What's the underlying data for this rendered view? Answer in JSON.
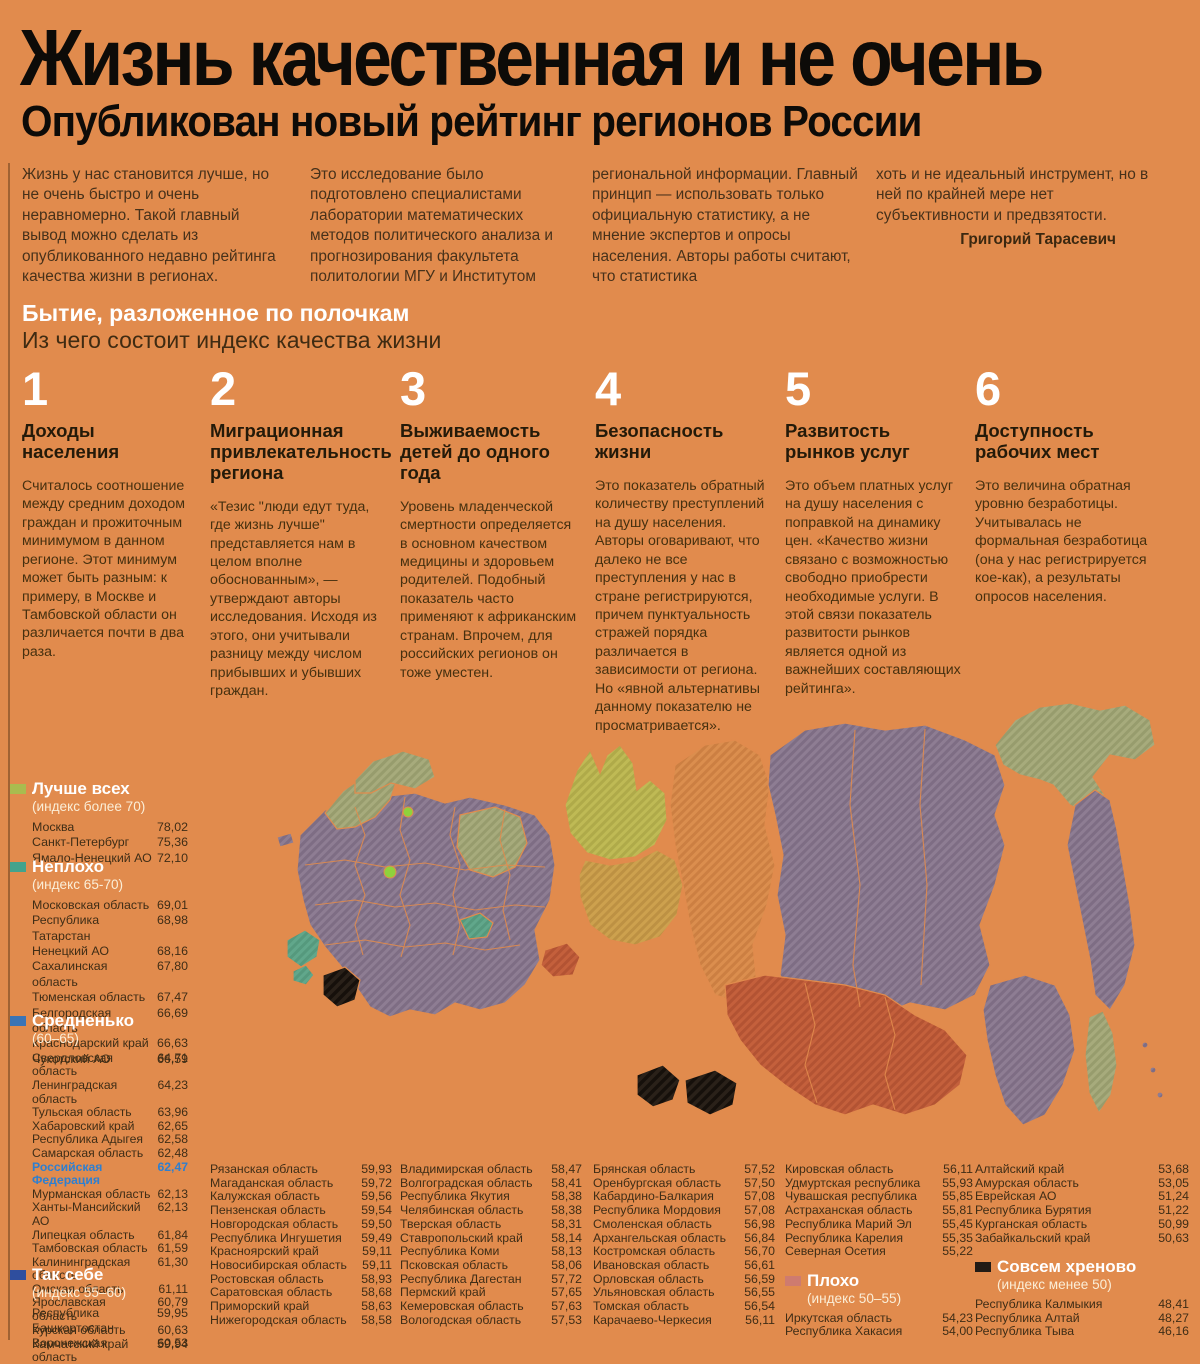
{
  "header": {
    "title": "Жизнь качественная и не очень",
    "subtitle": "Опубликован новый рейтинг регионов России"
  },
  "intro": {
    "col1": "Жизнь у нас становится лучше, но не очень быстро и очень неравномерно. Такой главный вывод можно сделать из опубликованного недавно рейтинга качества жизни в регионах.",
    "col2": "Это исследование было подготовлено специалистами лаборатории математических методов политического анализа и прогнозирования факультета политологии МГУ и Институтом",
    "col3": "региональной информации. Главный принцип — использовать только официальную статистику, а не мнение экспертов и опросы населения. Авторы работы считают, что статистика",
    "col4": "хоть и не идеальный инструмент, но в ней по крайней мере нет субъективности и предвзятости.",
    "author": "Григорий Тарасевич"
  },
  "section": {
    "title": "Бытие, разложенное по полочкам",
    "subtitle": "Из чего состоит индекс качества жизни"
  },
  "factors": [
    {
      "num": "1",
      "title": "Доходы населения",
      "text": "Считалось соотношение между средним доходом граждан и прожиточным минимумом в данном регионе. Этот минимум может быть разным: к примеру, в Москве и Тамбовской области он различается почти в два раза."
    },
    {
      "num": "2",
      "title": "Миграционная привлекательность региона",
      "text": "«Тезис \"люди едут туда, где жизнь лучше\" представляется нам в целом вполне обоснованным», — утверждают авторы исследования. Исходя из этого, они учитывали разницу между числом прибывших и убывших граждан."
    },
    {
      "num": "3",
      "title": "Выживаемость детей до одного года",
      "text": "Уровень младенческой смертности определяется в основном качеством медицины и здоровьем родителей. Подобный показатель часто применяют к африканским странам. Впрочем, для российских регионов он тоже уместен."
    },
    {
      "num": "4",
      "title": "Безопасность жизни",
      "text": "Это показатель обратный количеству преступлений на душу населения. Авторы оговаривают, что далеко не все преступления у нас в стране регистрируются, причем пунктуальность стражей порядка различается в зависимости от региона. Но «явной альтернативы данному показателю не просматривается»."
    },
    {
      "num": "5",
      "title": "Развитость рынков услуг",
      "text": "Это объем платных услуг на душу населения с поправкой на динамику цен. «Качество жизни связано с возможностью свободно приобрести необходимые услуги. В этой связи показатель развитости рынков является одной из важнейших составляющих рейтинга»."
    },
    {
      "num": "6",
      "title": "Доступность рабочих мест",
      "text": "Это величина обратная уровню безработицы. Учитывалась не формальная безработица (она у нас регистрируется кое-как), а результаты опросов населения."
    }
  ],
  "legend": {
    "best": {
      "title": "Лучше всех",
      "subtitle": "(индекс более 70)",
      "rows": [
        {
          "name": "Москва",
          "value": "78,02"
        },
        {
          "name": "Санкт-Петербург",
          "value": "75,36"
        },
        {
          "name": "Ямало-Ненецкий АО",
          "value": "72,10"
        }
      ]
    },
    "good": {
      "title": "Неплохо",
      "subtitle": "(индекс 65-70)",
      "rows": [
        {
          "name": "Московская область",
          "value": "69,01"
        },
        {
          "name": "Республика Татарстан",
          "value": "68,98"
        },
        {
          "name": "Ненецкий АО",
          "value": "68,16"
        },
        {
          "name": "Сахалинская область",
          "value": "67,80"
        },
        {
          "name": "Тюменская область",
          "value": "67,47"
        },
        {
          "name": "Белгородская область",
          "value": "66,69"
        },
        {
          "name": "Краснодарский край",
          "value": "66,63"
        },
        {
          "name": "Чукотский АО",
          "value": "66,59"
        }
      ]
    },
    "middle": {
      "title": "Средненько",
      "subtitle": "(60–65)",
      "rows": [
        {
          "name": "Свердловская область",
          "value": "64,71"
        },
        {
          "name": "Ленинградская область",
          "value": "64,23"
        },
        {
          "name": "Тульская область",
          "value": "63,96"
        },
        {
          "name": "Хабаровский край",
          "value": "62,65"
        },
        {
          "name": "Республика Адыгея",
          "value": "62,58"
        },
        {
          "name": "Самарская область",
          "value": "62,48"
        },
        {
          "name": "Российская Федерация",
          "value": "62,47",
          "highlight": true
        },
        {
          "name": "Мурманская область",
          "value": "62,13"
        },
        {
          "name": "Ханты-Мансийский АО",
          "value": "62,13"
        },
        {
          "name": "Липецкая область",
          "value": "61,84"
        },
        {
          "name": "Тамбовская область",
          "value": "61,59"
        },
        {
          "name": "Калининградская область",
          "value": "61,30"
        },
        {
          "name": "Омская область",
          "value": "61,11"
        },
        {
          "name": "Ярославская область",
          "value": "60,79"
        },
        {
          "name": "Курская область",
          "value": "60,63"
        },
        {
          "name": "Воронежская область",
          "value": "60,53"
        }
      ]
    },
    "soso": {
      "title": "Так себе",
      "subtitle": "(индекс 55–60)",
      "rows": [
        {
          "name": "Республика Башкортостан",
          "value": "59,95"
        },
        {
          "name": "Камчатский край",
          "value": "59,94"
        }
      ]
    },
    "bad": {
      "title": "Плохо",
      "subtitle": "(индекс 50–55)",
      "rows": [
        {
          "name": "Иркутская область",
          "value": "54,23"
        },
        {
          "name": "Республика Хакасия",
          "value": "54,00"
        }
      ]
    },
    "worst": {
      "title": "Совсем хреново",
      "subtitle": "(индекс менее 50)",
      "rows": [
        {
          "name": "Республика Калмыкия",
          "value": "48,41"
        },
        {
          "name": "Республика Алтай",
          "value": "48,27"
        },
        {
          "name": "Республика Тыва",
          "value": "46,16"
        }
      ]
    }
  },
  "table": {
    "col1": [
      {
        "name": "Рязанская область",
        "value": "59,93"
      },
      {
        "name": "Магаданская область",
        "value": "59,72"
      },
      {
        "name": "Калужская область",
        "value": "59,56"
      },
      {
        "name": "Пензенская область",
        "value": "59,54"
      },
      {
        "name": "Новгородская область",
        "value": "59,50"
      },
      {
        "name": "Республика Ингушетия",
        "value": "59,49"
      },
      {
        "name": "Красноярский край",
        "value": "59,11"
      },
      {
        "name": "Новосибирская область",
        "value": "59,11"
      },
      {
        "name": "Ростовская область",
        "value": "58,93"
      },
      {
        "name": "Саратовская область",
        "value": "58,68"
      },
      {
        "name": "Приморский край",
        "value": "58,63"
      },
      {
        "name": "Нижегородская область",
        "value": "58,58"
      }
    ],
    "col2": [
      {
        "name": "Владимирская область",
        "value": "58,47"
      },
      {
        "name": "Волгоградская область",
        "value": "58,41"
      },
      {
        "name": "Республика Якутия",
        "value": "58,38"
      },
      {
        "name": "Челябинская область",
        "value": "58,38"
      },
      {
        "name": "Тверская область",
        "value": "58,31"
      },
      {
        "name": "Ставропольский край",
        "value": "58,14"
      },
      {
        "name": "Республика Коми",
        "value": "58,13"
      },
      {
        "name": "Псковская область",
        "value": "58,06"
      },
      {
        "name": "Республика Дагестан",
        "value": "57,72"
      },
      {
        "name": "Пермский край",
        "value": "57,65"
      },
      {
        "name": "Кемеровская область",
        "value": "57,63"
      },
      {
        "name": "Вологодская область",
        "value": "57,53"
      }
    ],
    "col3": [
      {
        "name": "Брянская область",
        "value": "57,52"
      },
      {
        "name": "Оренбургская область",
        "value": "57,50"
      },
      {
        "name": "Кабардино-Балкария",
        "value": "57,08"
      },
      {
        "name": "Республика Мордовия",
        "value": "57,08"
      },
      {
        "name": "Смоленская область",
        "value": "56,98"
      },
      {
        "name": "Архангельская область",
        "value": "56,84"
      },
      {
        "name": "Костромская область",
        "value": "56,70"
      },
      {
        "name": "Ивановская область",
        "value": "56,61"
      },
      {
        "name": "Орловская область",
        "value": "56,59"
      },
      {
        "name": "Ульяновская область",
        "value": "56,55"
      },
      {
        "name": "Томская область",
        "value": "56,54"
      },
      {
        "name": "Карачаево-Черкесия",
        "value": "56,11"
      }
    ],
    "col4": [
      {
        "name": "Кировская область",
        "value": "56,11"
      },
      {
        "name": "Удмуртская республика",
        "value": "55,93"
      },
      {
        "name": "Чувашская республика",
        "value": "55,85"
      },
      {
        "name": "Астраханская область",
        "value": "55,81"
      },
      {
        "name": "Республика Марий Эл",
        "value": "55,45"
      },
      {
        "name": "Республика Карелия",
        "value": "55,35"
      },
      {
        "name": "Северная Осетия",
        "value": "55,22"
      }
    ],
    "col5": [
      {
        "name": "Алтайский край",
        "value": "53,68"
      },
      {
        "name": "Амурская область",
        "value": "53,05"
      },
      {
        "name": "Еврейская АО",
        "value": "51,24"
      },
      {
        "name": "Республика Бурятия",
        "value": "51,22"
      },
      {
        "name": "Курганская область",
        "value": "50,99"
      },
      {
        "name": "Забайкальский край",
        "value": "50,63"
      }
    ]
  },
  "colors": {
    "background": "#E18B4D",
    "headline": "#0D0B08",
    "body_text": "#46300F",
    "rf_highlight": "#2E7FD0",
    "categories": {
      "best": "#A9BC4F",
      "good": "#43A38C",
      "middle": "#3B74B5",
      "so_so": "#2F4E9E",
      "bad": "#CE7B6F",
      "worst": "#221B15"
    },
    "map": {
      "purple": "#8E7D93",
      "olive": "#A7AB7C",
      "yellow_green": "#BFBA55",
      "ochre": "#CDA14E",
      "orange_region": "#DB8E4E",
      "red": "#C4603C",
      "teal": "#61A78B",
      "black": "#2A2119",
      "city_dot": "#8FD23C"
    }
  }
}
